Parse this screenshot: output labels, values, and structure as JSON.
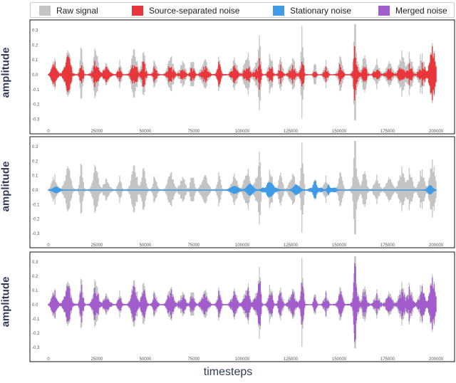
{
  "legend": {
    "raw_label": "Raw signal",
    "source_label": "Source-separated noise",
    "stationary_label": "Stationary noise",
    "merged_label": "Merged noise"
  },
  "colors": {
    "raw": "#c4c4c4",
    "source": "#e8363a",
    "stationary": "#3f9be6",
    "merged": "#a35ccc"
  },
  "ylabel": "amplitude",
  "xlabel": "timesteps",
  "chart_data": [
    {
      "type": "line",
      "series": [
        {
          "name": "Raw signal",
          "color": "#c4c4c4"
        },
        {
          "name": "Source-separated noise",
          "color": "#e8363a"
        }
      ],
      "xlim": [
        0,
        200000
      ],
      "xticks": [
        0,
        25000,
        50000,
        75000,
        100000,
        125000,
        150000,
        175000,
        200000
      ],
      "ylim": [
        -0.35,
        0.35
      ],
      "yticks": [
        "0.3",
        "0.2",
        "0.1",
        "0.0",
        "-0.1",
        "-0.2",
        "-0.3"
      ],
      "ytick_values": [
        0.3,
        0.2,
        0.1,
        0.0,
        -0.1,
        -0.2,
        -0.3
      ],
      "ylabel": "amplitude"
    },
    {
      "type": "line",
      "series": [
        {
          "name": "Raw signal",
          "color": "#c4c4c4"
        },
        {
          "name": "Stationary noise",
          "color": "#3f9be6"
        }
      ],
      "xlim": [
        0,
        200000
      ],
      "xticks": [
        0,
        25000,
        50000,
        75000,
        100000,
        125000,
        150000,
        175000,
        200000
      ],
      "ylim": [
        -0.35,
        0.35
      ],
      "yticks": [
        "0.3",
        "0.2",
        "0.1",
        "0.0",
        "-0.1",
        "-0.2",
        "-0.3"
      ],
      "ytick_values": [
        0.3,
        0.2,
        0.1,
        0.0,
        -0.1,
        -0.2,
        -0.3
      ],
      "ylabel": "amplitude"
    },
    {
      "type": "line",
      "series": [
        {
          "name": "Raw signal",
          "color": "#c4c4c4"
        },
        {
          "name": "Merged noise",
          "color": "#a35ccc"
        }
      ],
      "xlim": [
        0,
        200000
      ],
      "xticks": [
        0,
        25000,
        50000,
        75000,
        100000,
        125000,
        150000,
        175000,
        200000
      ],
      "ylim": [
        -0.35,
        0.35
      ],
      "yticks": [
        "0.3",
        "0.2",
        "0.1",
        "0.0",
        "-0.1",
        "-0.2",
        "-0.3"
      ],
      "ytick_values": [
        0.3,
        0.2,
        0.1,
        0.0,
        -0.1,
        -0.2,
        -0.3
      ],
      "ylabel": "amplitude",
      "xlabel": "timesteps"
    }
  ]
}
